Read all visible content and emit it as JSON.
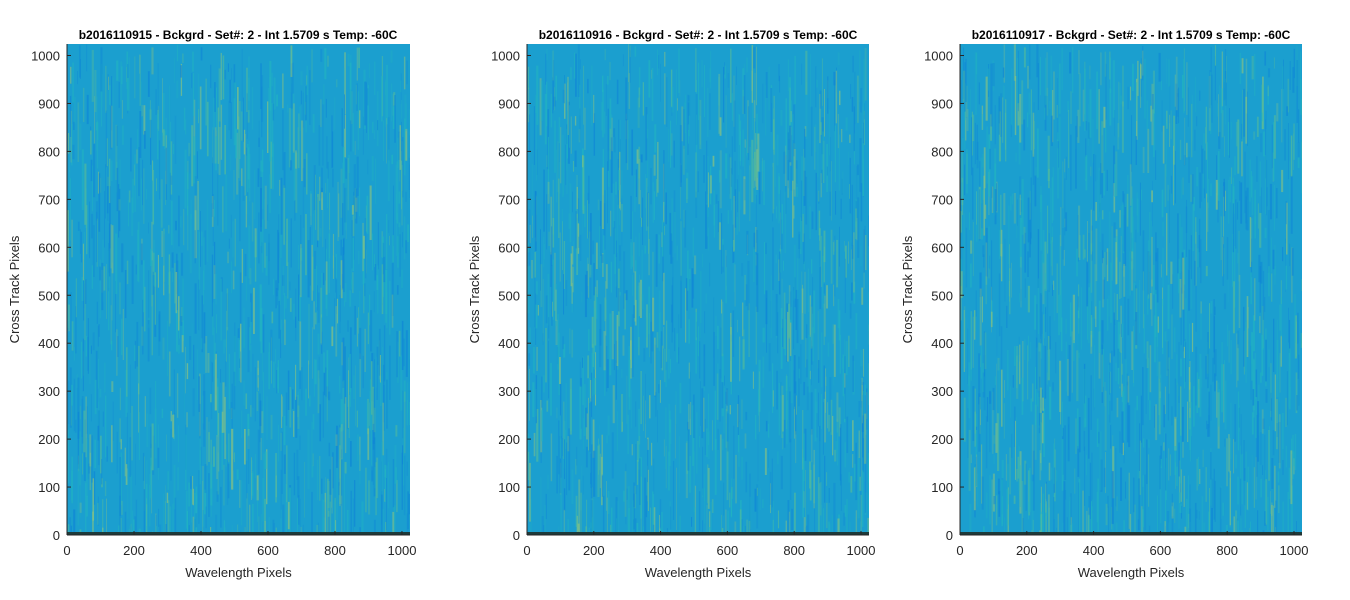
{
  "chart_data": [
    {
      "type": "heatmap",
      "title": "b2016110915 - Bckgrd - Set#: 2 - Int 1.5709 s Temp: -60C",
      "xlabel": "Wavelength Pixels",
      "ylabel": "Cross Track Pixels",
      "xlim": [
        0,
        1024
      ],
      "ylim": [
        0,
        1024
      ],
      "xticks": [
        "0",
        "200",
        "400",
        "600",
        "800",
        "1000"
      ],
      "yticks": [
        "0",
        "100",
        "200",
        "300",
        "400",
        "500",
        "600",
        "700",
        "800",
        "900",
        "1000"
      ],
      "grid": false,
      "colormap": "parula"
    },
    {
      "type": "heatmap",
      "title": "b2016110916 - Bckgrd - Set#: 2 - Int 1.5709 s Temp: -60C",
      "xlabel": "Wavelength Pixels",
      "ylabel": "Cross Track Pixels",
      "xlim": [
        0,
        1024
      ],
      "ylim": [
        0,
        1024
      ],
      "xticks": [
        "0",
        "200",
        "400",
        "600",
        "800",
        "1000"
      ],
      "yticks": [
        "0",
        "100",
        "200",
        "300",
        "400",
        "500",
        "600",
        "700",
        "800",
        "900",
        "1000"
      ],
      "grid": false,
      "colormap": "parula"
    },
    {
      "type": "heatmap",
      "title": "b2016110917 - Bckgrd - Set#: 2 - Int 1.5709 s Temp: -60C",
      "xlabel": "Wavelength Pixels",
      "ylabel": "Cross Track Pixels",
      "xlim": [
        0,
        1024
      ],
      "ylim": [
        0,
        1024
      ],
      "xticks": [
        "0",
        "200",
        "400",
        "600",
        "800",
        "1000"
      ],
      "yticks": [
        "0",
        "100",
        "200",
        "300",
        "400",
        "500",
        "600",
        "700",
        "800",
        "900",
        "1000"
      ],
      "grid": false,
      "colormap": "parula"
    }
  ],
  "colors": {
    "base": "#1b9fcf",
    "stripe_blue": "#0f86d6",
    "stripe_cyan": "#22b3c1",
    "stripe_green": "#53bb9b",
    "stripe_yellow": "#8cc47e",
    "axis_line": "#262626",
    "bottom_row": "#1d3b3b"
  }
}
